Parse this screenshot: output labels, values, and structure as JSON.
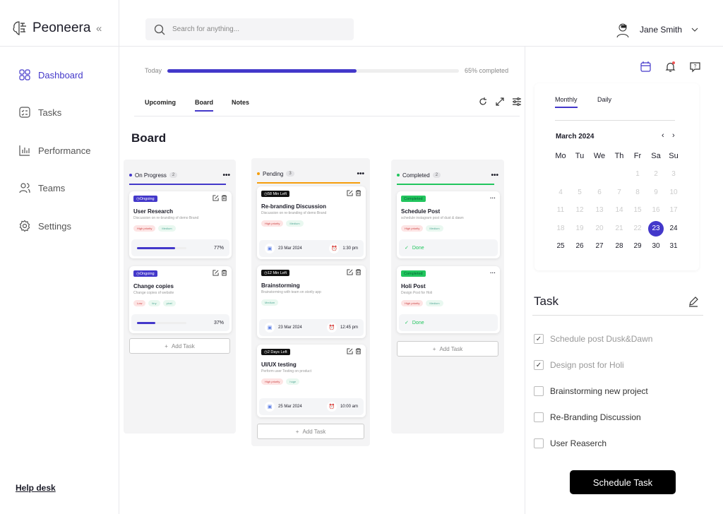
{
  "app": {
    "name": "Peoneera"
  },
  "sidebar": {
    "items": [
      {
        "label": "Dashboard",
        "icon": "grid-icon"
      },
      {
        "label": "Tasks",
        "icon": "checklist-icon"
      },
      {
        "label": "Performance",
        "icon": "bar-chart-icon"
      },
      {
        "label": "Teams",
        "icon": "users-icon"
      },
      {
        "label": "Settings",
        "icon": "gear-icon"
      }
    ],
    "help": "Help desk"
  },
  "search": {
    "placeholder": "Search for anything..."
  },
  "user": {
    "name": "Jane Smith"
  },
  "progress": {
    "label": "Today",
    "percent": 65,
    "text": "65% completed"
  },
  "tabs": [
    "Upcoming",
    "Board",
    "Notes"
  ],
  "board": {
    "title": "Board",
    "add_label": "Add Task",
    "columns": [
      {
        "name": "On Progress",
        "count": "2",
        "color": "#4338ca",
        "cards": [
          {
            "badge": "Ongoing",
            "title": "User Research",
            "desc": "Discussion on re-branding of demo Brand",
            "tags": [
              "High priority",
              "Medium"
            ],
            "progress": 77,
            "progress_text": "77%"
          },
          {
            "badge": "Ongoing",
            "title": "Change copies",
            "desc": "Change copies of website",
            "tags": [
              "Low",
              "tiny",
              "pixel"
            ],
            "progress": 37,
            "progress_text": "37%"
          }
        ]
      },
      {
        "name": "Pending",
        "count": "3",
        "color": "#f59e0b",
        "cards": [
          {
            "badge": "58 Min Left",
            "title": "Re-branding Discussion",
            "desc": "Discussion on re-branding of demo Brand",
            "tags": [
              "High priority",
              "Medium"
            ],
            "date": "23 Mar 2024",
            "time": "1:30 pm"
          },
          {
            "badge": "12 Min Left",
            "title": "Brainstorming",
            "desc": "Brainstorming with team on storily app",
            "tags": [
              "Medium"
            ],
            "date": "23 Mar 2024",
            "time": "12:45 pm"
          },
          {
            "badge": "2 Days Left",
            "title": "UI/UX testing",
            "desc": "Perform user Testing on product",
            "tags": [
              "High priority",
              "huge"
            ],
            "date": "25 Mar 2024",
            "time": "10:00 am"
          }
        ]
      },
      {
        "name": "Completed",
        "count": "2",
        "color": "#22c55e",
        "cards": [
          {
            "badge": "Completed",
            "title": "Schedule Post",
            "desc": "schedule instagram post of dust & dawn",
            "tags": [
              "High priority",
              "Medium"
            ],
            "status": "Done"
          },
          {
            "badge": "Completed",
            "title": "Holi Post",
            "desc": "Design Post for Holi",
            "tags": [
              "High priority",
              "Medium"
            ],
            "status": "Done"
          }
        ]
      }
    ]
  },
  "calendar": {
    "tabs": [
      "Monthly",
      "Daily"
    ],
    "month": "March 2024",
    "weekdays": [
      "Mo",
      "Tu",
      "We",
      "Th",
      "Fr",
      "Sa",
      "Su"
    ],
    "selected": 23,
    "days": 31,
    "first_weekday": 4
  },
  "tasks": {
    "title": "Task",
    "items": [
      {
        "label": "Schedule post Dusk&Dawn",
        "done": true
      },
      {
        "label": "Design post for Holi",
        "done": true
      },
      {
        "label": "Brainstorming new project",
        "done": false
      },
      {
        "label": "Re-Branding Discussion",
        "done": false
      },
      {
        "label": "User Reaserch",
        "done": false
      }
    ],
    "button": "Schedule Task"
  },
  "colors": {
    "accent": "#4338ca",
    "pending": "#f59e0b",
    "completed": "#22c55e"
  }
}
